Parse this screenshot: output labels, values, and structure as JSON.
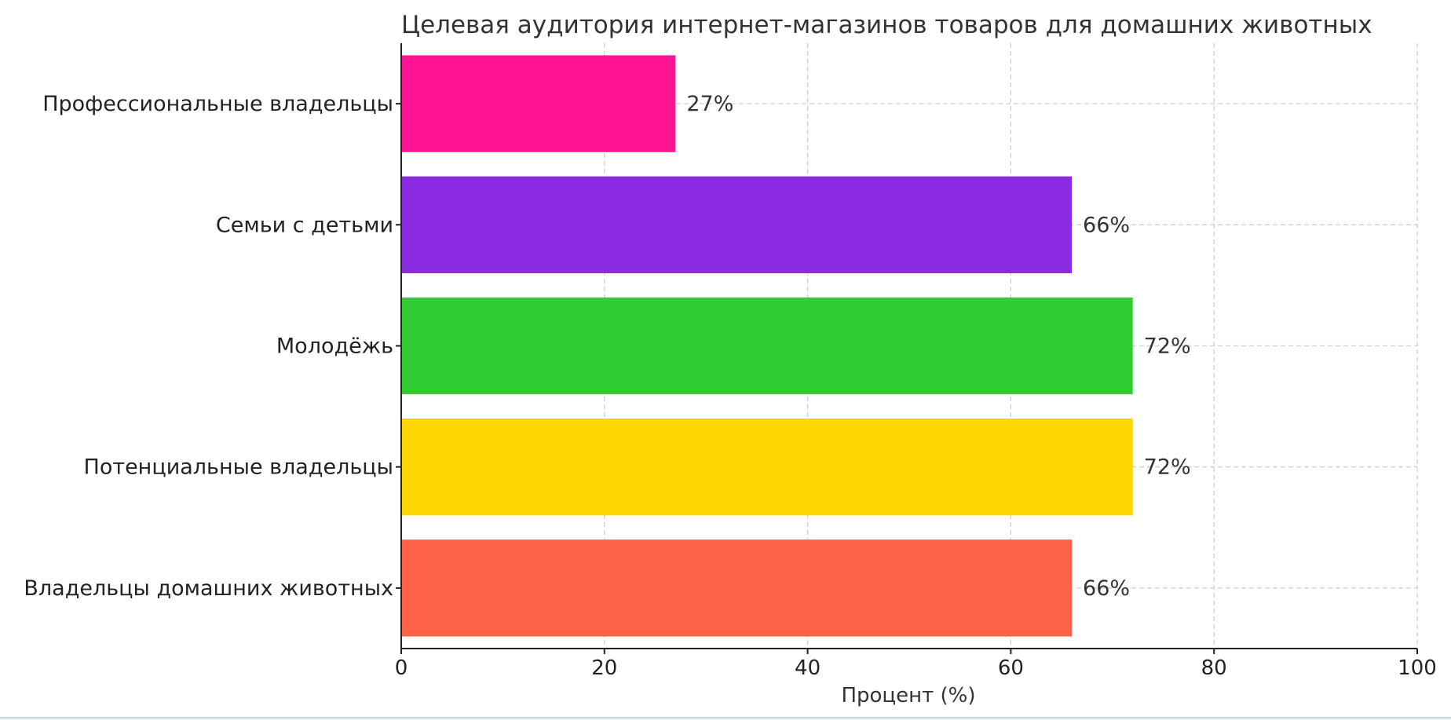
{
  "chart_data": {
    "type": "bar",
    "orientation": "horizontal",
    "title": "Целевая аудитория интернет-магазинов товаров для домашних животных",
    "xlabel": "Процент (%)",
    "ylabel": "",
    "xlim": [
      0,
      100
    ],
    "xticks": [
      "0",
      "20",
      "40",
      "60",
      "80",
      "100"
    ],
    "grid": true,
    "categories": [
      "Профессиональные владельцы",
      "Семьи с детьми",
      "Молодёжь",
      "Потенциальные владельцы",
      "Владельцы домашних животных"
    ],
    "values": [
      27,
      66,
      72,
      72,
      66
    ],
    "value_labels": [
      "27%",
      "66%",
      "72%",
      "72%",
      "66%"
    ],
    "colors": [
      "#ff1493",
      "#8a2be2",
      "#32cd32",
      "#ffd700",
      "#ff6347"
    ]
  }
}
